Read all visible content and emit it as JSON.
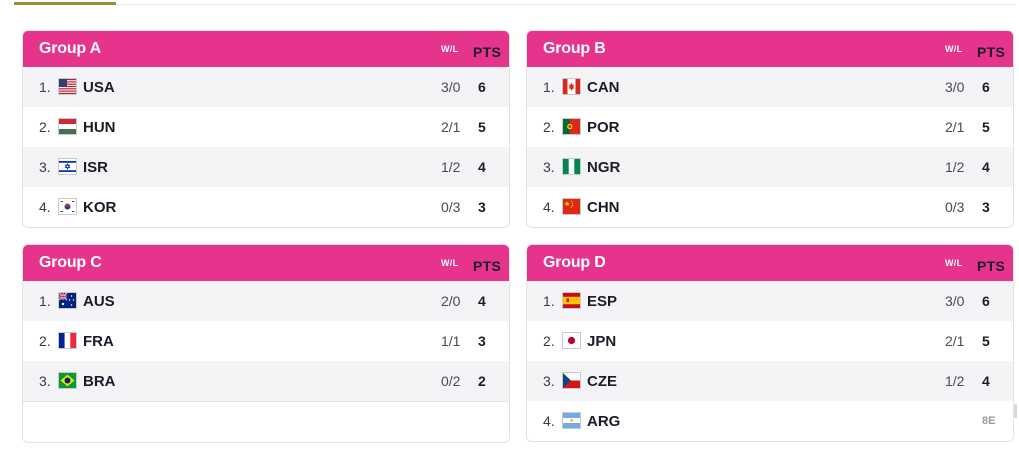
{
  "brand": {
    "header_color": "#e6338c",
    "tab_accent": "#a08a3c"
  },
  "columns": {
    "wl": "W/L",
    "pts": "PTS"
  },
  "groups": [
    {
      "title": "Group A",
      "rows": [
        {
          "rank": "1.",
          "flag": "usa-flag-icon",
          "code": "USA",
          "wl": "3/0",
          "pts": "6"
        },
        {
          "rank": "2.",
          "flag": "hungary-flag-icon",
          "code": "HUN",
          "wl": "2/1",
          "pts": "5"
        },
        {
          "rank": "3.",
          "flag": "israel-flag-icon",
          "code": "ISR",
          "wl": "1/2",
          "pts": "4"
        },
        {
          "rank": "4.",
          "flag": "korea-flag-icon",
          "code": "KOR",
          "wl": "0/3",
          "pts": "3"
        }
      ]
    },
    {
      "title": "Group B",
      "rows": [
        {
          "rank": "1.",
          "flag": "canada-flag-icon",
          "code": "CAN",
          "wl": "3/0",
          "pts": "6"
        },
        {
          "rank": "2.",
          "flag": "portugal-flag-icon",
          "code": "POR",
          "wl": "2/1",
          "pts": "5"
        },
        {
          "rank": "3.",
          "flag": "nigeria-flag-icon",
          "code": "NGR",
          "wl": "1/2",
          "pts": "4"
        },
        {
          "rank": "4.",
          "flag": "china-flag-icon",
          "code": "CHN",
          "wl": "0/3",
          "pts": "3"
        }
      ]
    },
    {
      "title": "Group C",
      "rows": [
        {
          "rank": "1.",
          "flag": "australia-flag-icon",
          "code": "AUS",
          "wl": "2/0",
          "pts": "4"
        },
        {
          "rank": "2.",
          "flag": "france-flag-icon",
          "code": "FRA",
          "wl": "1/1",
          "pts": "3"
        },
        {
          "rank": "3.",
          "flag": "brazil-flag-icon",
          "code": "BRA",
          "wl": "0/2",
          "pts": "2"
        }
      ]
    },
    {
      "title": "Group D",
      "rows": [
        {
          "rank": "1.",
          "flag": "spain-flag-icon",
          "code": "ESP",
          "wl": "3/0",
          "pts": "6"
        },
        {
          "rank": "2.",
          "flag": "japan-flag-icon",
          "code": "JPN",
          "wl": "2/1",
          "pts": "5"
        },
        {
          "rank": "3.",
          "flag": "czechia-flag-icon",
          "code": "CZE",
          "wl": "1/2",
          "pts": "4"
        },
        {
          "rank": "4.",
          "flag": "argentina-flag-icon",
          "code": "ARG",
          "wl": "",
          "pts": "",
          "ghost": "8E"
        }
      ]
    }
  ]
}
